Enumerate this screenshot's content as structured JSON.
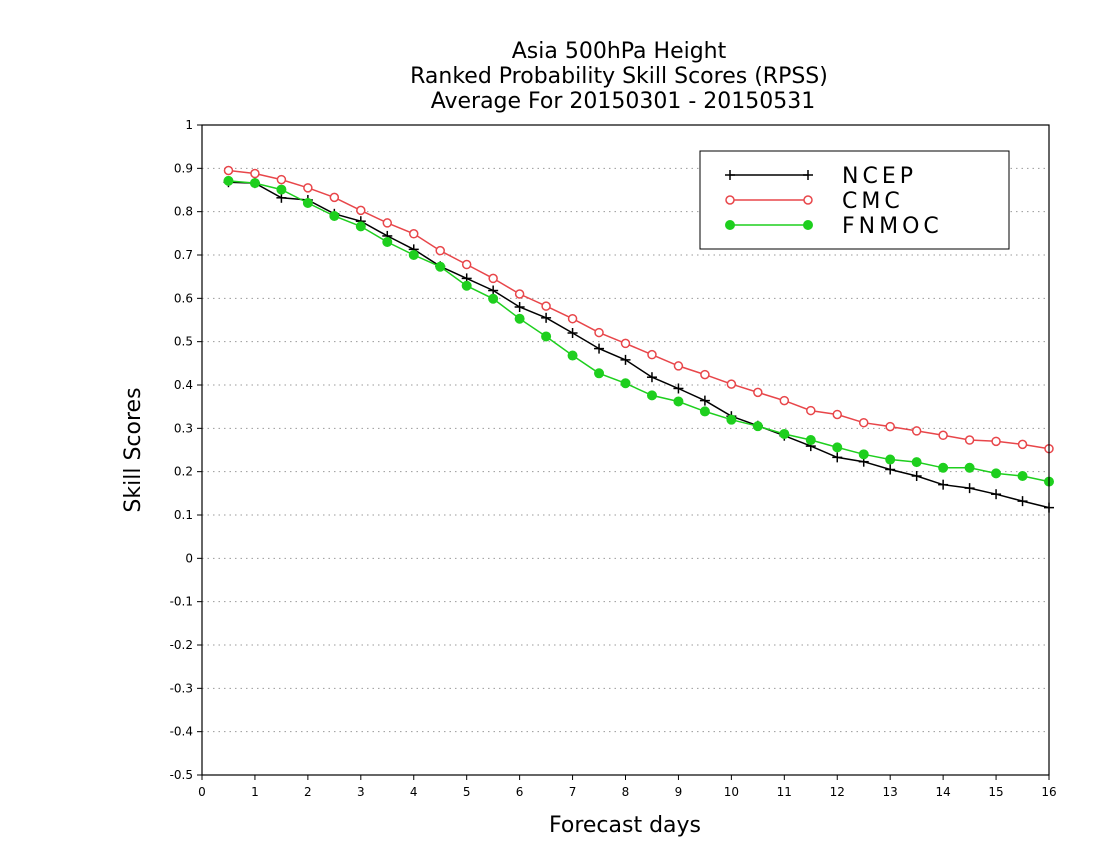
{
  "chart_data": {
    "type": "line",
    "title": [
      "Asia 500hPa Height",
      "Ranked Probability Skill Scores (RPSS)",
      "Average For 20150301 - 20150531"
    ],
    "xlabel": "Forecast days",
    "ylabel": "Skill Scores",
    "xlim": [
      0,
      16
    ],
    "ylim": [
      -0.5,
      1
    ],
    "xticks": [
      "0",
      "1",
      "2",
      "3",
      "4",
      "5",
      "6",
      "7",
      "8",
      "9",
      "10",
      "11",
      "12",
      "13",
      "14",
      "15",
      "16"
    ],
    "yticks": [
      "1",
      "0.9",
      "0.8",
      "0.7",
      "0.6",
      "0.5",
      "0.4",
      "0.3",
      "0.2",
      "0.1",
      "0",
      "-0.1",
      "-0.2",
      "-0.3",
      "-0.4",
      "-0.5"
    ],
    "grid": "horizontal dotted",
    "legend_position": "top-right",
    "x": [
      0.5,
      1,
      1.5,
      2,
      2.5,
      3,
      3.5,
      4,
      4.5,
      5,
      5.5,
      6,
      6.5,
      7,
      7.5,
      8,
      8.5,
      9,
      9.5,
      10,
      10.5,
      11,
      11.5,
      12,
      12.5,
      13,
      13.5,
      14,
      14.5,
      15,
      15.5,
      16
    ],
    "series": [
      {
        "name": "NCEP",
        "color": "#000000",
        "marker": "plus",
        "values": [
          0.868,
          0.866,
          0.832,
          0.827,
          0.795,
          0.778,
          0.744,
          0.713,
          0.674,
          0.646,
          0.618,
          0.58,
          0.555,
          0.52,
          0.484,
          0.458,
          0.418,
          0.392,
          0.364,
          0.328,
          0.306,
          0.283,
          0.259,
          0.233,
          0.223,
          0.205,
          0.19,
          0.17,
          0.162,
          0.148,
          0.132,
          0.117
        ]
      },
      {
        "name": "CMC",
        "color": "#e8464a",
        "marker": "open-circle",
        "values": [
          0.895,
          0.888,
          0.874,
          0.855,
          0.833,
          0.803,
          0.774,
          0.749,
          0.71,
          0.678,
          0.646,
          0.61,
          0.582,
          0.553,
          0.521,
          0.496,
          0.47,
          0.444,
          0.424,
          0.402,
          0.383,
          0.364,
          0.341,
          0.332,
          0.313,
          0.304,
          0.294,
          0.284,
          0.273,
          0.27,
          0.263,
          0.253
        ]
      },
      {
        "name": "FNMOC",
        "color": "#1ecf1e",
        "marker": "filled-circle",
        "values": [
          0.871,
          0.866,
          0.851,
          0.82,
          0.79,
          0.766,
          0.73,
          0.7,
          0.673,
          0.629,
          0.599,
          0.553,
          0.512,
          0.468,
          0.427,
          0.404,
          0.376,
          0.362,
          0.339,
          0.32,
          0.305,
          0.287,
          0.273,
          0.256,
          0.24,
          0.228,
          0.222,
          0.209,
          0.209,
          0.196,
          0.19,
          0.177
        ]
      }
    ]
  }
}
